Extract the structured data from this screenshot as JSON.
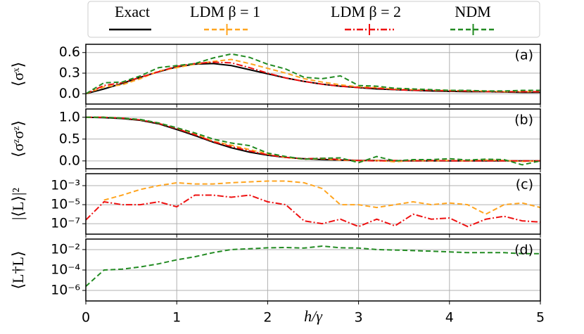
{
  "chart_data": [
    {
      "type": "line",
      "panel_label": "(a)",
      "ylabel": "⟨σˣ⟩",
      "x": [
        0,
        0.2,
        0.4,
        0.6,
        0.8,
        1.0,
        1.2,
        1.4,
        1.6,
        1.8,
        2.0,
        2.2,
        2.4,
        2.6,
        2.8,
        3.0,
        3.2,
        3.4,
        3.6,
        3.8,
        4.0,
        4.2,
        4.4,
        4.6,
        4.8,
        5.0
      ],
      "xlim": [
        0,
        5
      ],
      "xticks": [
        0,
        1,
        2,
        3,
        4,
        5
      ],
      "ylim": [
        -0.15,
        0.72
      ],
      "yticks": [
        {
          "value": 0,
          "label": "0.0"
        },
        0.3,
        0.6
      ],
      "grid": true,
      "series": [
        {
          "name": "Exact",
          "color": "#000000",
          "linestyle": "solid",
          "values": [
            0,
            0.07,
            0.15,
            0.24,
            0.32,
            0.39,
            0.43,
            0.44,
            0.41,
            0.35,
            0.29,
            0.23,
            0.18,
            0.14,
            0.11,
            0.09,
            0.07,
            0.06,
            0.05,
            0.04,
            0.035,
            0.03,
            0.03,
            0.025,
            0.02,
            0.02
          ]
        },
        {
          "name": "LDM β = 1",
          "color": "#ffa520",
          "linestyle": "dashed",
          "values": [
            0,
            0.1,
            0.13,
            0.22,
            0.33,
            0.38,
            0.43,
            0.47,
            0.5,
            0.44,
            0.37,
            0.3,
            0.22,
            0.17,
            0.13,
            0.1,
            0.09,
            0.07,
            0.06,
            0.05,
            0.05,
            0.04,
            0.04,
            0.03,
            0.03,
            0.03
          ]
        },
        {
          "name": "LDM β = 2",
          "color": "#ee1111",
          "linestyle": "dashdot",
          "values": [
            0,
            0.12,
            0.16,
            0.24,
            0.32,
            0.4,
            0.44,
            0.46,
            0.45,
            0.38,
            0.3,
            0.23,
            0.18,
            0.14,
            0.11,
            0.09,
            0.08,
            0.06,
            0.05,
            0.05,
            0.04,
            0.04,
            0.03,
            0.03,
            0.03,
            0.03
          ]
        },
        {
          "name": "NDM",
          "color": "#228b22",
          "linestyle": "dashed",
          "values": [
            0,
            0.16,
            0.17,
            0.26,
            0.38,
            0.41,
            0.44,
            0.52,
            0.58,
            0.53,
            0.43,
            0.36,
            0.24,
            0.22,
            0.26,
            0.12,
            0.11,
            0.08,
            0.07,
            0.06,
            0.05,
            0.05,
            0.04,
            0.04,
            0.05,
            0.05
          ]
        }
      ]
    },
    {
      "type": "line",
      "panel_label": "(b)",
      "ylabel": "⟨σᶻσᶻ⟩",
      "x": [
        0,
        0.2,
        0.4,
        0.6,
        0.8,
        1.0,
        1.2,
        1.4,
        1.6,
        1.8,
        2.0,
        2.2,
        2.4,
        2.6,
        2.8,
        3.0,
        3.2,
        3.4,
        3.6,
        3.8,
        4.0,
        4.2,
        4.4,
        4.6,
        4.8,
        5.0
      ],
      "xlim": [
        0,
        5
      ],
      "xticks": [
        0,
        1,
        2,
        3,
        4,
        5
      ],
      "ylim": [
        -0.18,
        1.19
      ],
      "yticks": [
        {
          "value": 0,
          "label": "0.0"
        },
        0.5,
        {
          "value": 1,
          "label": "1.0"
        }
      ],
      "grid": true,
      "series": [
        {
          "name": "Exact",
          "color": "#000000",
          "linestyle": "solid",
          "values": [
            1,
            0.99,
            0.97,
            0.93,
            0.85,
            0.72,
            0.58,
            0.43,
            0.3,
            0.2,
            0.13,
            0.08,
            0.05,
            0.03,
            0.02,
            0.01,
            0.01,
            0,
            0,
            0,
            0,
            0,
            0,
            0,
            0,
            0
          ]
        },
        {
          "name": "LDM β = 1",
          "color": "#ffa520",
          "linestyle": "dashed",
          "values": [
            1,
            1,
            0.98,
            0.94,
            0.87,
            0.75,
            0.62,
            0.45,
            0.36,
            0.26,
            0.16,
            0.08,
            0.04,
            0.05,
            0.02,
            0,
            0.01,
            -0.02,
            0.01,
            0,
            0.01,
            0,
            0.02,
            0.01,
            -0.01,
            0
          ]
        },
        {
          "name": "LDM β = 2",
          "color": "#ee1111",
          "linestyle": "dashdot",
          "values": [
            1,
            1,
            0.98,
            0.94,
            0.86,
            0.74,
            0.6,
            0.44,
            0.33,
            0.23,
            0.14,
            0.08,
            0.05,
            0.06,
            0.03,
            0.01,
            0,
            0.01,
            0,
            0.01,
            0,
            0,
            0,
            0,
            0,
            0
          ]
        },
        {
          "name": "NDM",
          "color": "#228b22",
          "linestyle": "dashed",
          "values": [
            1,
            1,
            0.98,
            0.95,
            0.87,
            0.76,
            0.64,
            0.5,
            0.41,
            0.35,
            0.18,
            0.1,
            0.04,
            0.06,
            0.07,
            -0.04,
            0.1,
            0,
            0.03,
            0.03,
            0.05,
            0.02,
            0.04,
            0.03,
            -0.09,
            0
          ]
        }
      ]
    },
    {
      "type": "line",
      "panel_label": "(c)",
      "ylabel": "|⟨L⟩|²",
      "yscale": "log",
      "x": [
        0,
        0.2,
        0.4,
        0.6,
        0.8,
        1.0,
        1.2,
        1.4,
        1.6,
        1.8,
        2.0,
        2.2,
        2.4,
        2.6,
        2.8,
        3.0,
        3.2,
        3.4,
        3.6,
        3.8,
        4.0,
        4.2,
        4.4,
        4.6,
        4.8,
        5.0
      ],
      "xlim": [
        0,
        5
      ],
      "xticks": [
        0,
        1,
        2,
        3,
        4,
        5
      ],
      "ylim": [
        8e-09,
        0.018
      ],
      "yticks": [
        {
          "value": 1e-07,
          "label": "10⁻⁷"
        },
        {
          "value": 1e-05,
          "label": "10⁻⁵"
        },
        {
          "value": 0.001,
          "label": "10⁻³"
        }
      ],
      "grid": true,
      "series": [
        {
          "name": "LDM β = 1",
          "color": "#ffa520",
          "linestyle": "dashed",
          "values": [
            null,
            3e-05,
            0.0001,
            0.0004,
            0.001,
            0.002,
            0.0015,
            0.0015,
            0.002,
            0.0025,
            0.003,
            0.003,
            0.002,
            0.0005,
            1e-05,
            1e-05,
            5e-06,
            1e-05,
            2e-05,
            1e-05,
            1.5e-05,
            1e-05,
            1e-06,
            1e-05,
            1.5e-05,
            5e-06
          ]
        },
        {
          "name": "LDM β = 2",
          "color": "#ee1111",
          "linestyle": "dashdot",
          "values": [
            2.5e-07,
            2e-05,
            1e-05,
            1e-05,
            2e-05,
            6e-06,
            0.0001,
            0.0001,
            6e-05,
            0.0001,
            2e-05,
            1e-05,
            2e-07,
            1e-07,
            3e-07,
            5e-08,
            3e-07,
            6e-08,
            1e-06,
            3e-07,
            4e-07,
            5e-08,
            3e-07,
            6e-07,
            2e-07,
            1.5e-07
          ]
        }
      ]
    },
    {
      "type": "line",
      "panel_label": "(d)",
      "ylabel": "⟨L†L⟩",
      "yscale": "log",
      "xlabel": "h/γ",
      "x": [
        0,
        0.2,
        0.4,
        0.6,
        0.8,
        1.0,
        1.2,
        1.4,
        1.6,
        1.8,
        2.0,
        2.2,
        2.4,
        2.6,
        2.8,
        3.0,
        3.2,
        3.4,
        3.6,
        3.8,
        4.0,
        4.2,
        4.4,
        4.6,
        4.8,
        5.0
      ],
      "xlim": [
        0,
        5
      ],
      "xticks": [
        0,
        1,
        2,
        3,
        4,
        5
      ],
      "ylim": [
        9.3e-08,
        0.107
      ],
      "yticks": [
        {
          "value": 1e-06,
          "label": "10⁻⁶"
        },
        {
          "value": 0.0001,
          "label": "10⁻⁴"
        },
        {
          "value": 0.01,
          "label": "10⁻²"
        }
      ],
      "grid": true,
      "series": [
        {
          "name": "NDM",
          "color": "#228b22",
          "linestyle": "dashed",
          "values": [
            2.5e-06,
            0.0001,
            0.00012,
            0.0002,
            0.0004,
            0.001,
            0.002,
            0.005,
            0.01,
            0.012,
            0.015,
            0.016,
            0.014,
            0.022,
            0.015,
            0.014,
            0.01,
            0.009,
            0.008,
            0.007,
            0.006,
            0.005,
            0.005,
            0.005,
            0.004,
            0.004
          ]
        }
      ]
    }
  ]
}
